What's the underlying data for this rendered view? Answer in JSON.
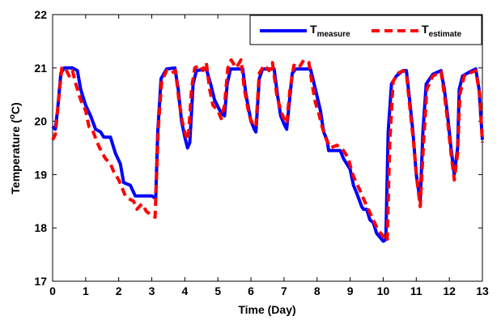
{
  "chart_data": {
    "type": "line",
    "title": "",
    "xlabel": "Time (Day)",
    "ylabel_main": "Temperature (",
    "ylabel_sup": "o",
    "ylabel_end": "C)",
    "xlim": [
      0,
      13
    ],
    "ylim": [
      17,
      22
    ],
    "xticks": [
      0,
      1,
      2,
      3,
      4,
      5,
      6,
      7,
      8,
      9,
      10,
      11,
      12,
      13
    ],
    "yticks": [
      17,
      18,
      19,
      20,
      21,
      22
    ],
    "grid": false,
    "legend_position": "top-right",
    "series": [
      {
        "name_main": "T",
        "name_sub": "measure",
        "color": "#0000ff",
        "style": "solid",
        "points": [
          [
            0.0,
            19.9
          ],
          [
            0.08,
            19.85
          ],
          [
            0.15,
            20.2
          ],
          [
            0.25,
            20.9
          ],
          [
            0.35,
            21.0
          ],
          [
            0.6,
            21.0
          ],
          [
            0.75,
            20.95
          ],
          [
            0.85,
            20.6
          ],
          [
            1.0,
            20.3
          ],
          [
            1.15,
            20.1
          ],
          [
            1.3,
            19.85
          ],
          [
            1.45,
            19.8
          ],
          [
            1.55,
            19.7
          ],
          [
            1.75,
            19.7
          ],
          [
            1.9,
            19.4
          ],
          [
            2.05,
            19.2
          ],
          [
            2.15,
            18.85
          ],
          [
            2.35,
            18.8
          ],
          [
            2.5,
            18.6
          ],
          [
            3.0,
            18.6
          ],
          [
            3.12,
            18.55
          ],
          [
            3.18,
            19.8
          ],
          [
            3.28,
            20.8
          ],
          [
            3.45,
            20.98
          ],
          [
            3.7,
            21.0
          ],
          [
            3.8,
            20.6
          ],
          [
            3.9,
            20.0
          ],
          [
            4.0,
            19.7
          ],
          [
            4.08,
            19.5
          ],
          [
            4.15,
            19.6
          ],
          [
            4.25,
            20.7
          ],
          [
            4.35,
            20.95
          ],
          [
            4.65,
            20.98
          ],
          [
            4.78,
            20.7
          ],
          [
            4.9,
            20.4
          ],
          [
            5.1,
            20.15
          ],
          [
            5.2,
            20.1
          ],
          [
            5.28,
            20.7
          ],
          [
            5.38,
            20.98
          ],
          [
            5.75,
            20.98
          ],
          [
            5.85,
            20.5
          ],
          [
            6.0,
            20.0
          ],
          [
            6.1,
            19.85
          ],
          [
            6.15,
            19.8
          ],
          [
            6.25,
            20.8
          ],
          [
            6.35,
            20.98
          ],
          [
            6.7,
            20.98
          ],
          [
            6.8,
            20.5
          ],
          [
            6.9,
            20.1
          ],
          [
            7.0,
            19.95
          ],
          [
            7.08,
            19.85
          ],
          [
            7.15,
            20.3
          ],
          [
            7.25,
            20.9
          ],
          [
            7.35,
            20.98
          ],
          [
            7.8,
            20.98
          ],
          [
            7.95,
            20.6
          ],
          [
            8.1,
            20.2
          ],
          [
            8.2,
            19.8
          ],
          [
            8.3,
            19.65
          ],
          [
            8.35,
            19.45
          ],
          [
            8.7,
            19.45
          ],
          [
            8.8,
            19.3
          ],
          [
            9.0,
            19.1
          ],
          [
            9.1,
            18.8
          ],
          [
            9.2,
            18.65
          ],
          [
            9.35,
            18.4
          ],
          [
            9.4,
            18.35
          ],
          [
            9.5,
            18.35
          ],
          [
            9.6,
            18.15
          ],
          [
            9.7,
            18.1
          ],
          [
            9.8,
            17.9
          ],
          [
            10.0,
            17.75
          ],
          [
            10.08,
            17.78
          ],
          [
            10.15,
            19.8
          ],
          [
            10.25,
            20.7
          ],
          [
            10.4,
            20.85
          ],
          [
            10.6,
            20.95
          ],
          [
            10.7,
            20.95
          ],
          [
            10.8,
            20.4
          ],
          [
            10.9,
            19.8
          ],
          [
            11.0,
            19.0
          ],
          [
            11.12,
            18.5
          ],
          [
            11.2,
            19.8
          ],
          [
            11.3,
            20.7
          ],
          [
            11.5,
            20.88
          ],
          [
            11.75,
            20.95
          ],
          [
            11.85,
            20.6
          ],
          [
            11.95,
            20.1
          ],
          [
            12.05,
            19.5
          ],
          [
            12.15,
            19.0
          ],
          [
            12.25,
            19.5
          ],
          [
            12.3,
            20.6
          ],
          [
            12.4,
            20.85
          ],
          [
            12.6,
            20.92
          ],
          [
            12.8,
            20.98
          ],
          [
            12.9,
            20.6
          ],
          [
            13.0,
            19.65
          ]
        ]
      },
      {
        "name_main": "T",
        "name_sub": "estimate",
        "color": "#ff0000",
        "style": "dashed",
        "points": [
          [
            0.0,
            19.65
          ],
          [
            0.08,
            19.75
          ],
          [
            0.18,
            20.4
          ],
          [
            0.28,
            21.0
          ],
          [
            0.4,
            20.98
          ],
          [
            0.5,
            20.85
          ],
          [
            0.6,
            20.95
          ],
          [
            0.7,
            20.7
          ],
          [
            0.85,
            20.4
          ],
          [
            1.0,
            20.2
          ],
          [
            1.1,
            19.9
          ],
          [
            1.2,
            19.85
          ],
          [
            1.35,
            19.6
          ],
          [
            1.5,
            19.4
          ],
          [
            1.6,
            19.3
          ],
          [
            1.75,
            19.2
          ],
          [
            1.85,
            19.05
          ],
          [
            2.0,
            18.9
          ],
          [
            2.1,
            18.75
          ],
          [
            2.2,
            18.6
          ],
          [
            2.3,
            18.55
          ],
          [
            2.45,
            18.5
          ],
          [
            2.55,
            18.35
          ],
          [
            2.7,
            18.45
          ],
          [
            2.85,
            18.3
          ],
          [
            3.0,
            18.25
          ],
          [
            3.1,
            18.2
          ],
          [
            3.2,
            19.9
          ],
          [
            3.3,
            20.75
          ],
          [
            3.45,
            20.95
          ],
          [
            3.6,
            20.9
          ],
          [
            3.72,
            20.95
          ],
          [
            3.82,
            20.4
          ],
          [
            3.92,
            20.0
          ],
          [
            4.02,
            19.75
          ],
          [
            4.1,
            19.65
          ],
          [
            4.2,
            20.6
          ],
          [
            4.3,
            21.0
          ],
          [
            4.45,
            21.05
          ],
          [
            4.55,
            20.95
          ],
          [
            4.65,
            21.1
          ],
          [
            4.75,
            20.6
          ],
          [
            4.85,
            20.3
          ],
          [
            5.0,
            20.2
          ],
          [
            5.1,
            20.05
          ],
          [
            5.2,
            20.3
          ],
          [
            5.3,
            21.0
          ],
          [
            5.4,
            21.15
          ],
          [
            5.55,
            21.0
          ],
          [
            5.7,
            21.15
          ],
          [
            5.8,
            20.6
          ],
          [
            5.95,
            20.1
          ],
          [
            6.05,
            19.95
          ],
          [
            6.15,
            19.9
          ],
          [
            6.25,
            20.9
          ],
          [
            6.4,
            21.05
          ],
          [
            6.55,
            20.95
          ],
          [
            6.65,
            21.1
          ],
          [
            6.78,
            20.5
          ],
          [
            6.9,
            20.2
          ],
          [
            7.0,
            20.05
          ],
          [
            7.08,
            19.95
          ],
          [
            7.18,
            20.6
          ],
          [
            7.3,
            21.05
          ],
          [
            7.45,
            21.0
          ],
          [
            7.6,
            21.15
          ],
          [
            7.75,
            21.1
          ],
          [
            7.85,
            20.7
          ],
          [
            7.95,
            20.35
          ],
          [
            8.05,
            20.15
          ],
          [
            8.15,
            19.9
          ],
          [
            8.25,
            19.7
          ],
          [
            8.4,
            19.5
          ],
          [
            8.6,
            19.55
          ],
          [
            8.8,
            19.45
          ],
          [
            8.95,
            19.3
          ],
          [
            9.05,
            19.05
          ],
          [
            9.15,
            18.9
          ],
          [
            9.3,
            18.7
          ],
          [
            9.4,
            18.55
          ],
          [
            9.55,
            18.35
          ],
          [
            9.7,
            18.15
          ],
          [
            9.85,
            17.95
          ],
          [
            10.0,
            17.85
          ],
          [
            10.12,
            17.75
          ],
          [
            10.2,
            19.6
          ],
          [
            10.3,
            20.75
          ],
          [
            10.45,
            20.9
          ],
          [
            10.6,
            20.95
          ],
          [
            10.7,
            20.9
          ],
          [
            10.8,
            20.3
          ],
          [
            10.92,
            19.6
          ],
          [
            11.02,
            18.9
          ],
          [
            11.12,
            18.4
          ],
          [
            11.22,
            19.6
          ],
          [
            11.32,
            20.6
          ],
          [
            11.5,
            20.85
          ],
          [
            11.75,
            20.93
          ],
          [
            11.85,
            20.5
          ],
          [
            11.95,
            20.0
          ],
          [
            12.05,
            19.4
          ],
          [
            12.15,
            18.9
          ],
          [
            12.25,
            19.4
          ],
          [
            12.32,
            20.5
          ],
          [
            12.45,
            20.85
          ],
          [
            12.6,
            20.9
          ],
          [
            12.8,
            20.95
          ],
          [
            12.92,
            20.5
          ],
          [
            13.0,
            19.6
          ]
        ]
      }
    ]
  }
}
